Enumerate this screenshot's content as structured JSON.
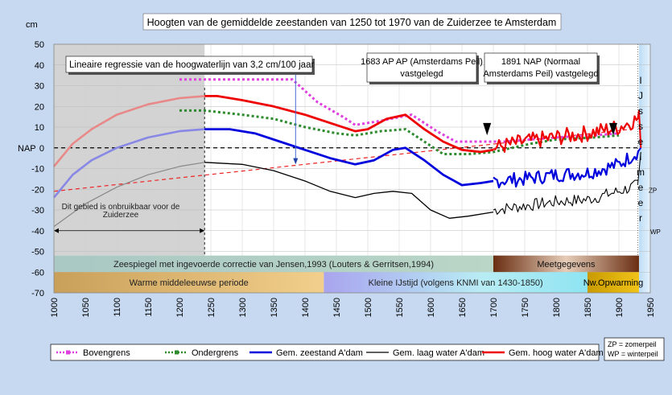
{
  "chart_data": {
    "type": "line",
    "title": "Hoogten van de gemiddelde zeestanden van 1250 tot 1970 van de Zuiderzee te Amsterdam",
    "ylabel": "cm",
    "nap_label": "NAP",
    "xlim": [
      1000,
      1950
    ],
    "ylim": [
      -70,
      50
    ],
    "xticks": [
      1000,
      1050,
      1100,
      1150,
      1200,
      1250,
      1300,
      1350,
      1400,
      1450,
      1500,
      1550,
      1600,
      1650,
      1700,
      1750,
      1800,
      1850,
      1900,
      1950
    ],
    "yticks": [
      50,
      40,
      30,
      20,
      10,
      0,
      -10,
      -20,
      -30,
      -40,
      -50,
      -60,
      -70
    ],
    "annotations": {
      "regression": "Lineaire regressie van de hoogwaterlijn van 3,2 cm/100 jaar",
      "ap": "1683 AP (Amsterdams Peil) vastgelegd",
      "nap": "1891 NAP (Normaal Amsterdams Peil) vastgelegd",
      "unusable": "Dit gebied is onbruikbaar voor de Zuiderzee",
      "ijsselmeer": [
        "I",
        "J",
        "s",
        "s",
        "e",
        "l",
        "m",
        "e",
        "e",
        "r"
      ],
      "zp": "ZP",
      "wp": "WP"
    },
    "bands": {
      "jensen": "Zeespiegel met ingevoerde correctie van Jensen,1993 (Louters & Gerritsen,1994)",
      "meet": "Meetgegevens",
      "warm": "Warme middeleeuwse periode",
      "ice": "Kleine IJstijd (volgens KNMI van 1430-1850)",
      "nw": "Nw.Opwarming"
    },
    "legend": {
      "items": [
        {
          "name": "Bovengrens",
          "color": "#e040e0",
          "style": "dotted"
        },
        {
          "name": "Ondergrens",
          "color": "#2e8b2e",
          "style": "dotted"
        },
        {
          "name": "Gem. zeestand A'dam",
          "color": "#0000dd",
          "style": "solid"
        },
        {
          "name": "Gem. laag water A'dam",
          "color": "#000000",
          "style": "solid"
        },
        {
          "name": "Gem. hoog water A'dam",
          "color": "#ee0000",
          "style": "solid"
        }
      ],
      "peil": [
        "ZP  = zomerpeil",
        "WP = winterpeil"
      ]
    },
    "series": {
      "hoog_extrap": [
        [
          1000,
          -9
        ],
        [
          1030,
          2
        ],
        [
          1060,
          9
        ],
        [
          1100,
          16
        ],
        [
          1150,
          21
        ],
        [
          1200,
          24
        ],
        [
          1240,
          25
        ]
      ],
      "hoog": [
        [
          1240,
          25
        ],
        [
          1260,
          25
        ],
        [
          1300,
          23
        ],
        [
          1350,
          20
        ],
        [
          1400,
          16
        ],
        [
          1450,
          11
        ],
        [
          1480,
          8
        ],
        [
          1500,
          9
        ],
        [
          1530,
          14
        ],
        [
          1560,
          16
        ],
        [
          1590,
          9
        ],
        [
          1620,
          3
        ],
        [
          1650,
          -1
        ],
        [
          1680,
          -2
        ],
        [
          1700,
          -1
        ]
      ],
      "zee_extrap": [
        [
          1000,
          -24
        ],
        [
          1030,
          -13
        ],
        [
          1060,
          -6
        ],
        [
          1100,
          0
        ],
        [
          1150,
          5
        ],
        [
          1200,
          8
        ],
        [
          1240,
          9
        ]
      ],
      "zee": [
        [
          1240,
          9
        ],
        [
          1280,
          9
        ],
        [
          1320,
          7
        ],
        [
          1360,
          3
        ],
        [
          1400,
          -1
        ],
        [
          1440,
          -5
        ],
        [
          1480,
          -8
        ],
        [
          1510,
          -6
        ],
        [
          1540,
          -1
        ],
        [
          1560,
          0
        ],
        [
          1590,
          -6
        ],
        [
          1620,
          -13
        ],
        [
          1650,
          -18
        ],
        [
          1680,
          -17
        ],
        [
          1700,
          -16
        ]
      ],
      "laag_extrap": [
        [
          1000,
          -38
        ],
        [
          1050,
          -27
        ],
        [
          1100,
          -19
        ],
        [
          1150,
          -13
        ],
        [
          1200,
          -9
        ],
        [
          1240,
          -7
        ]
      ],
      "laag": [
        [
          1240,
          -7
        ],
        [
          1300,
          -8
        ],
        [
          1350,
          -11
        ],
        [
          1400,
          -16
        ],
        [
          1440,
          -21
        ],
        [
          1480,
          -24
        ],
        [
          1510,
          -22
        ],
        [
          1540,
          -21
        ],
        [
          1570,
          -22
        ],
        [
          1600,
          -30
        ],
        [
          1630,
          -34
        ],
        [
          1660,
          -33
        ],
        [
          1700,
          -31
        ]
      ],
      "boven": [
        [
          1200,
          33
        ],
        [
          1380,
          33
        ],
        [
          1420,
          22
        ],
        [
          1460,
          15
        ],
        [
          1480,
          11
        ],
        [
          1520,
          13
        ],
        [
          1570,
          16
        ],
        [
          1610,
          8
        ],
        [
          1640,
          3
        ],
        [
          1680,
          3
        ],
        [
          1720,
          3
        ],
        [
          1760,
          4
        ],
        [
          1800,
          5
        ],
        [
          1860,
          6
        ],
        [
          1900,
          7
        ]
      ],
      "onder": [
        [
          1200,
          18
        ],
        [
          1240,
          18
        ],
        [
          1300,
          16
        ],
        [
          1350,
          14
        ],
        [
          1400,
          10
        ],
        [
          1450,
          7
        ],
        [
          1480,
          6
        ],
        [
          1520,
          8
        ],
        [
          1560,
          9
        ],
        [
          1590,
          3
        ],
        [
          1620,
          -3
        ],
        [
          1660,
          -3
        ],
        [
          1700,
          -2
        ],
        [
          1760,
          2
        ],
        [
          1800,
          4
        ],
        [
          1860,
          5
        ],
        [
          1900,
          6
        ]
      ],
      "regressie": [
        [
          1000,
          -21
        ],
        [
          1920,
          9
        ]
      ],
      "meet_start": 1700,
      "meet_end": 1932,
      "meet_hoog_base": [
        [
          1700,
          0
        ],
        [
          1750,
          3
        ],
        [
          1800,
          5
        ],
        [
          1850,
          7
        ],
        [
          1900,
          10
        ],
        [
          1930,
          14
        ]
      ],
      "meet_zee_base": [
        [
          1700,
          -16
        ],
        [
          1750,
          -15
        ],
        [
          1800,
          -13
        ],
        [
          1850,
          -12
        ],
        [
          1900,
          -8
        ],
        [
          1930,
          -2
        ]
      ],
      "meet_laag_base": [
        [
          1700,
          -30
        ],
        [
          1750,
          -28
        ],
        [
          1800,
          -26
        ],
        [
          1850,
          -25
        ],
        [
          1900,
          -21
        ],
        [
          1930,
          -18
        ]
      ]
    }
  }
}
